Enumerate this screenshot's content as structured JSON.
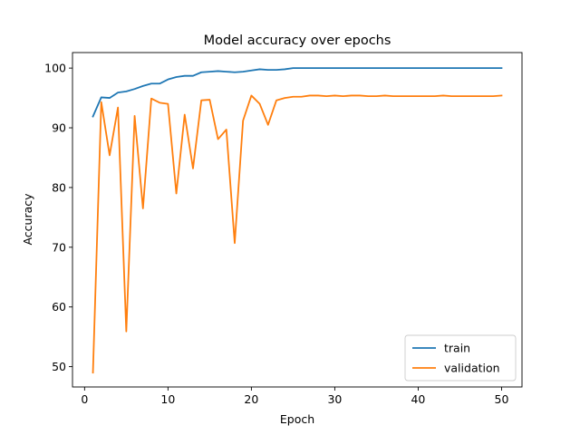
{
  "chart_data": {
    "type": "line",
    "title": "Model accuracy over epochs",
    "xlabel": "Epoch",
    "ylabel": "Accuracy",
    "xlim": [
      -1.45,
      52.45
    ],
    "ylim": [
      46.6,
      102.6
    ],
    "xticks": [
      0,
      10,
      20,
      30,
      40,
      50
    ],
    "yticks": [
      50,
      60,
      70,
      80,
      90,
      100
    ],
    "grid": false,
    "legend_position": "lower right",
    "x": [
      1,
      2,
      3,
      4,
      5,
      6,
      7,
      8,
      9,
      10,
      11,
      12,
      13,
      14,
      15,
      16,
      17,
      18,
      19,
      20,
      21,
      22,
      23,
      24,
      25,
      26,
      27,
      28,
      29,
      30,
      31,
      32,
      33,
      34,
      35,
      36,
      37,
      38,
      39,
      40,
      41,
      42,
      43,
      44,
      45,
      46,
      47,
      48,
      49,
      50
    ],
    "series": [
      {
        "name": "train",
        "color": "#1f77b4",
        "values": [
          91.9,
          95.1,
          95.0,
          95.9,
          96.1,
          96.5,
          97.0,
          97.4,
          97.4,
          98.1,
          98.5,
          98.7,
          98.7,
          99.3,
          99.4,
          99.5,
          99.4,
          99.3,
          99.4,
          99.6,
          99.8,
          99.7,
          99.7,
          99.8,
          100.0,
          100.0,
          100.0,
          100.0,
          100.0,
          100.0,
          100.0,
          100.0,
          100.0,
          100.0,
          100.0,
          100.0,
          100.0,
          100.0,
          100.0,
          100.0,
          100.0,
          100.0,
          100.0,
          100.0,
          100.0,
          100.0,
          100.0,
          100.0,
          100.0,
          100.0
        ]
      },
      {
        "name": "validation",
        "color": "#ff7f0e",
        "values": [
          49.0,
          94.3,
          85.4,
          93.4,
          55.9,
          92.0,
          76.5,
          94.9,
          94.2,
          94.0,
          79.0,
          92.2,
          83.2,
          94.6,
          94.7,
          88.1,
          89.7,
          70.7,
          91.2,
          95.4,
          94.0,
          90.5,
          94.6,
          95.0,
          95.2,
          95.2,
          95.4,
          95.4,
          95.3,
          95.4,
          95.3,
          95.4,
          95.4,
          95.3,
          95.3,
          95.4,
          95.3,
          95.3,
          95.3,
          95.3,
          95.3,
          95.3,
          95.4,
          95.3,
          95.3,
          95.3,
          95.3,
          95.3,
          95.3,
          95.4
        ]
      }
    ]
  }
}
